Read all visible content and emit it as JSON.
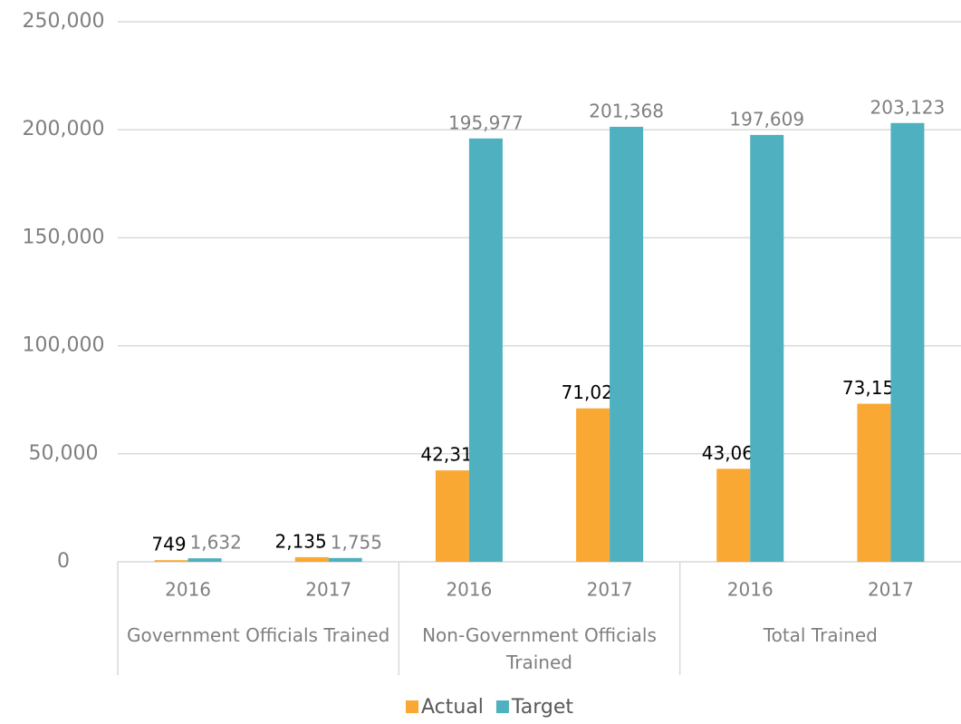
{
  "chart_data": {
    "type": "bar",
    "categories": [
      "2016",
      "2017",
      "2016",
      "2017",
      "2016",
      "2017"
    ],
    "groups": [
      "Government Officials Trained",
      "Non-Government Officials Trained",
      "Total Trained"
    ],
    "series": [
      {
        "name": "Actual",
        "color": "#f9a833",
        "values": [
          749,
          2135,
          42316,
          71023,
          43065,
          73158
        ],
        "value_labels": [
          "749",
          "2,135",
          "42,316",
          "71,023",
          "43,065",
          "73,158"
        ]
      },
      {
        "name": "Target",
        "color": "#4fb0bf",
        "values": [
          1632,
          1755,
          195977,
          201368,
          197609,
          203123
        ],
        "value_labels": [
          "1,632",
          "1,755",
          "195,977",
          "201,368",
          "197,609",
          "203,123"
        ]
      }
    ],
    "ylim": [
      0,
      250000
    ],
    "yticks": [
      {
        "value": 0,
        "label": "0"
      },
      {
        "value": 50000,
        "label": "50,000"
      },
      {
        "value": 100000,
        "label": "100,000"
      },
      {
        "value": 150000,
        "label": "150,000"
      },
      {
        "value": 200000,
        "label": "200,000"
      },
      {
        "value": 250000,
        "label": "250,000"
      }
    ],
    "grid": true,
    "legend": "bottom"
  }
}
